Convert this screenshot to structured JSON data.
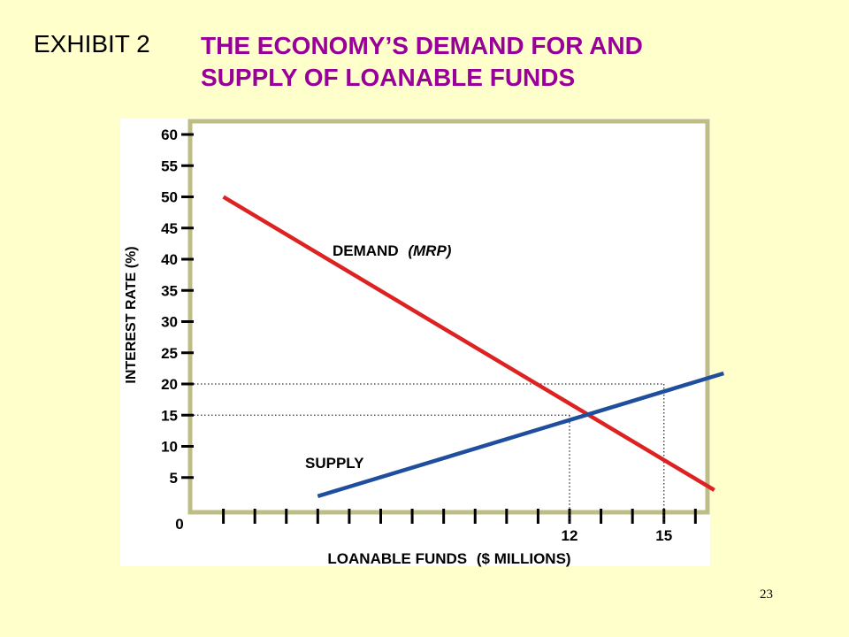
{
  "slide": {
    "exhibit_label": "EXHIBIT 2",
    "title_line1": "THE ECONOMY’S DEMAND FOR AND",
    "title_line2": "SUPPLY OF LOANABLE FUNDS",
    "page_number": "23"
  },
  "colors": {
    "background": "#FFFFCC",
    "title": "#990099",
    "demand": "#DD2222",
    "supply": "#1F4E9E",
    "plot_frame": "#BDBD85"
  },
  "chart_data": {
    "type": "line",
    "title": "",
    "xlabel_bold": "LOANABLE FUNDS",
    "xlabel_paren": "($ MILLIONS)",
    "ylabel": "INTEREST RATE (%)",
    "xlim": [
      0,
      16.3
    ],
    "ylim": [
      0,
      62
    ],
    "yticks": [
      5,
      10,
      15,
      20,
      25,
      30,
      35,
      40,
      45,
      50,
      55,
      60
    ],
    "x_tick_count": 16,
    "x_tick_labels": [
      {
        "value": 12,
        "label": "12"
      },
      {
        "value": 15,
        "label": 15
      }
    ],
    "origin_label": "0",
    "grid": false,
    "series": [
      {
        "name": "DEMAND",
        "name_suffix": "(MRP)",
        "points": [
          [
            1,
            50
          ],
          [
            16.6,
            3
          ]
        ]
      },
      {
        "name": "SUPPLY",
        "name_suffix": "",
        "points": [
          [
            4,
            2
          ],
          [
            16.9,
            21.7
          ]
        ]
      }
    ],
    "reference_lines": [
      {
        "x": 12,
        "y": 15
      },
      {
        "x": 15,
        "y": 20
      }
    ]
  }
}
